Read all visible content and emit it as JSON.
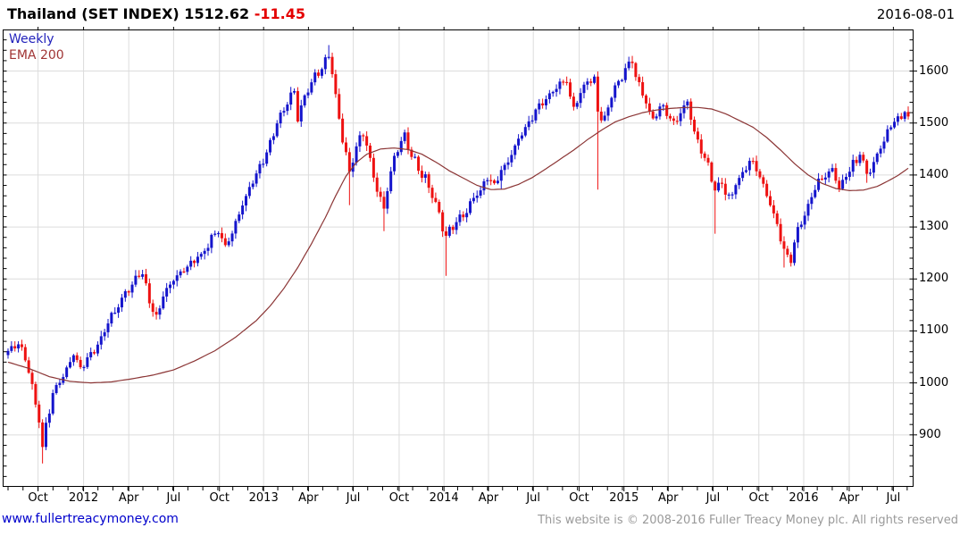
{
  "header": {
    "title": "Thailand (SET INDEX) 1512.62",
    "change": "-11.45",
    "date": "2016-08-01"
  },
  "legend": {
    "series_label": "Weekly",
    "overlay_label": "EMA 200"
  },
  "footer": {
    "link": "www.fullertreacymoney.com",
    "copyright": "This website is © 2008-2016 Fuller Treacy Money plc. All rights reserved"
  },
  "colors": {
    "up_candle": "#1414cc",
    "down_candle": "#ee1111",
    "ema_line": "#8b3535",
    "grid": "#dcdcdc",
    "axis": "#000000",
    "title_change": "#e40000",
    "link": "#0000cc",
    "copyright": "#9a9a9a",
    "legend_weekly": "#2222bb",
    "legend_ema": "#a03535"
  },
  "chart_data": {
    "type": "candlestick",
    "instrument": "Thailand SET INDEX",
    "timeframe": "weekly",
    "as_of": "2016-08-01",
    "last_close": 1512.62,
    "last_change": -11.45,
    "overlay": "EMA 200",
    "legend_position": "top-left",
    "axis_side": "right",
    "grid": true,
    "ylim": [
      800,
      1680
    ],
    "y_ticks": [
      900,
      1000,
      1100,
      1200,
      1300,
      1400,
      1500,
      1600
    ],
    "y_minor_step": 20,
    "weeks_total": 262,
    "x_minor_step_weeks": 4.345,
    "x_ticks": [
      {
        "label": "Oct",
        "week": 8.7
      },
      {
        "label": "2012",
        "week": 21.9
      },
      {
        "label": "Apr",
        "week": 35.0
      },
      {
        "label": "Jul",
        "week": 48.0
      },
      {
        "label": "Oct",
        "week": 61.3
      },
      {
        "label": "2013",
        "week": 74.1
      },
      {
        "label": "Apr",
        "week": 87.1
      },
      {
        "label": "Jul",
        "week": 100.1
      },
      {
        "label": "Oct",
        "week": 113.4
      },
      {
        "label": "2014",
        "week": 126.4
      },
      {
        "label": "Apr",
        "week": 139.3
      },
      {
        "label": "Jul",
        "week": 152.3
      },
      {
        "label": "Oct",
        "week": 165.6
      },
      {
        "label": "2015",
        "week": 178.6
      },
      {
        "label": "Apr",
        "week": 191.4
      },
      {
        "label": "Jul",
        "week": 204.4
      },
      {
        "label": "Oct",
        "week": 217.7
      },
      {
        "label": "2016",
        "week": 230.7
      },
      {
        "label": "Apr",
        "week": 243.9
      },
      {
        "label": "Jul",
        "week": 256.7
      }
    ],
    "close_anchors": [
      [
        0,
        1065
      ],
      [
        3,
        1072
      ],
      [
        5,
        1048
      ],
      [
        7,
        990
      ],
      [
        9,
        925
      ],
      [
        10,
        875
      ],
      [
        11,
        918
      ],
      [
        13,
        978
      ],
      [
        15,
        1002
      ],
      [
        17,
        1028
      ],
      [
        19,
        1058
      ],
      [
        21,
        1032
      ],
      [
        23,
        1042
      ],
      [
        26,
        1075
      ],
      [
        30,
        1125
      ],
      [
        34,
        1170
      ],
      [
        37,
        1200
      ],
      [
        39,
        1212
      ],
      [
        41,
        1160
      ],
      [
        43,
        1128
      ],
      [
        45,
        1168
      ],
      [
        48,
        1198
      ],
      [
        52,
        1228
      ],
      [
        56,
        1248
      ],
      [
        59,
        1280
      ],
      [
        61,
        1295
      ],
      [
        63,
        1262
      ],
      [
        65,
        1292
      ],
      [
        67,
        1330
      ],
      [
        69,
        1358
      ],
      [
        71,
        1392
      ],
      [
        74,
        1428
      ],
      [
        78,
        1502
      ],
      [
        81,
        1540
      ],
      [
        83,
        1558
      ],
      [
        84,
        1512
      ],
      [
        86,
        1548
      ],
      [
        89,
        1588
      ],
      [
        91,
        1610
      ],
      [
        93,
        1632
      ],
      [
        95,
        1555
      ],
      [
        97,
        1468
      ],
      [
        99,
        1405
      ],
      [
        101,
        1452
      ],
      [
        103,
        1482
      ],
      [
        105,
        1432
      ],
      [
        107,
        1372
      ],
      [
        109,
        1335
      ],
      [
        111,
        1405
      ],
      [
        113,
        1452
      ],
      [
        115,
        1472
      ],
      [
        117,
        1442
      ],
      [
        119,
        1412
      ],
      [
        121,
        1392
      ],
      [
        123,
        1362
      ],
      [
        125,
        1322
      ],
      [
        127,
        1282
      ],
      [
        129,
        1302
      ],
      [
        131,
        1315
      ],
      [
        133,
        1332
      ],
      [
        135,
        1352
      ],
      [
        139,
        1392
      ],
      [
        141,
        1378
      ],
      [
        143,
        1408
      ],
      [
        147,
        1452
      ],
      [
        151,
        1502
      ],
      [
        155,
        1542
      ],
      [
        159,
        1568
      ],
      [
        162,
        1582
      ],
      [
        164,
        1525
      ],
      [
        166,
        1555
      ],
      [
        168,
        1582
      ],
      [
        170,
        1585
      ],
      [
        171,
        1518
      ],
      [
        173,
        1505
      ],
      [
        175,
        1552
      ],
      [
        177,
        1582
      ],
      [
        179,
        1602
      ],
      [
        181,
        1619
      ],
      [
        183,
        1572
      ],
      [
        185,
        1542
      ],
      [
        187,
        1502
      ],
      [
        189,
        1532
      ],
      [
        191,
        1522
      ],
      [
        193,
        1498
      ],
      [
        195,
        1522
      ],
      [
        197,
        1538
      ],
      [
        199,
        1482
      ],
      [
        201,
        1442
      ],
      [
        203,
        1422
      ],
      [
        205,
        1368
      ],
      [
        207,
        1385
      ],
      [
        209,
        1352
      ],
      [
        211,
        1382
      ],
      [
        213,
        1402
      ],
      [
        215,
        1428
      ],
      [
        217,
        1412
      ],
      [
        219,
        1382
      ],
      [
        221,
        1342
      ],
      [
        223,
        1302
      ],
      [
        225,
        1252
      ],
      [
        227,
        1238
      ],
      [
        229,
        1298
      ],
      [
        231,
        1322
      ],
      [
        233,
        1358
      ],
      [
        235,
        1388
      ],
      [
        237,
        1402
      ],
      [
        239,
        1408
      ],
      [
        241,
        1372
      ],
      [
        243,
        1398
      ],
      [
        245,
        1422
      ],
      [
        247,
        1438
      ],
      [
        249,
        1398
      ],
      [
        251,
        1425
      ],
      [
        253,
        1455
      ],
      [
        255,
        1482
      ],
      [
        257,
        1500
      ],
      [
        259,
        1515
      ],
      [
        260,
        1528
      ],
      [
        261,
        1512.62
      ]
    ],
    "ema_anchors": [
      [
        0,
        1040
      ],
      [
        6,
        1028
      ],
      [
        12,
        1012
      ],
      [
        18,
        1003
      ],
      [
        24,
        1000
      ],
      [
        30,
        1002
      ],
      [
        36,
        1008
      ],
      [
        42,
        1015
      ],
      [
        48,
        1025
      ],
      [
        54,
        1042
      ],
      [
        60,
        1062
      ],
      [
        66,
        1088
      ],
      [
        72,
        1120
      ],
      [
        76,
        1148
      ],
      [
        80,
        1182
      ],
      [
        84,
        1222
      ],
      [
        88,
        1268
      ],
      [
        92,
        1318
      ],
      [
        95,
        1360
      ],
      [
        98,
        1398
      ],
      [
        101,
        1424
      ],
      [
        104,
        1440
      ],
      [
        108,
        1450
      ],
      [
        112,
        1452
      ],
      [
        116,
        1449
      ],
      [
        120,
        1440
      ],
      [
        124,
        1425
      ],
      [
        128,
        1408
      ],
      [
        132,
        1394
      ],
      [
        136,
        1380
      ],
      [
        140,
        1372
      ],
      [
        144,
        1373
      ],
      [
        148,
        1382
      ],
      [
        152,
        1395
      ],
      [
        156,
        1412
      ],
      [
        160,
        1430
      ],
      [
        164,
        1448
      ],
      [
        168,
        1468
      ],
      [
        172,
        1486
      ],
      [
        176,
        1502
      ],
      [
        180,
        1512
      ],
      [
        184,
        1520
      ],
      [
        188,
        1525
      ],
      [
        192,
        1528
      ],
      [
        196,
        1530
      ],
      [
        200,
        1530
      ],
      [
        204,
        1527
      ],
      [
        208,
        1518
      ],
      [
        212,
        1505
      ],
      [
        216,
        1492
      ],
      [
        220,
        1472
      ],
      [
        224,
        1448
      ],
      [
        228,
        1422
      ],
      [
        232,
        1400
      ],
      [
        236,
        1384
      ],
      [
        240,
        1374
      ],
      [
        244,
        1370
      ],
      [
        248,
        1371
      ],
      [
        252,
        1378
      ],
      [
        255,
        1388
      ],
      [
        258,
        1399
      ],
      [
        261,
        1413
      ]
    ],
    "spike_lows": [
      [
        10,
        845
      ],
      [
        99,
        1342
      ],
      [
        109,
        1292
      ],
      [
        127,
        1206
      ],
      [
        143,
        1372
      ],
      [
        171,
        1372
      ],
      [
        205,
        1287
      ],
      [
        225,
        1222
      ],
      [
        249,
        1385
      ]
    ],
    "spike_highs": [
      [
        93,
        1650
      ],
      [
        181,
        1627
      ]
    ],
    "wiggle_amplitude": 8,
    "seed": 7
  }
}
